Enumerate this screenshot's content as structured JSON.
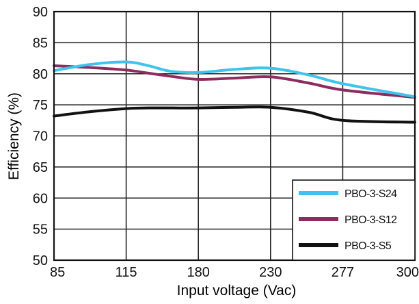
{
  "chart_data": {
    "type": "line",
    "title": "",
    "xlabel": "Input voltage (Vac)",
    "ylabel": "Efficiency (%)",
    "x_categories": [
      "85",
      "115",
      "180",
      "230",
      "277",
      "300"
    ],
    "y_ticks": [
      50,
      55,
      60,
      65,
      70,
      75,
      80,
      85,
      90
    ],
    "ylim": [
      50,
      90
    ],
    "grid": true,
    "legend_position": "bottom-right",
    "series": [
      {
        "name": "PBO-3-S24",
        "color": "#3fc3ec",
        "x": [
          85,
          100,
          115,
          135,
          155,
          180,
          205,
          230,
          255,
          277,
          300
        ],
        "y": [
          80.5,
          81.5,
          81.9,
          81.3,
          80.4,
          80.2,
          80.7,
          80.9,
          79.8,
          78.4,
          76.3
        ]
      },
      {
        "name": "PBO-3-S12",
        "color": "#8c2c5f",
        "x": [
          85,
          100,
          115,
          135,
          155,
          180,
          205,
          230,
          255,
          277,
          300
        ],
        "y": [
          81.3,
          81.0,
          80.6,
          80.1,
          79.6,
          79.1,
          79.3,
          79.5,
          78.5,
          77.4,
          76.2
        ]
      },
      {
        "name": "PBO-3-S5",
        "color": "#111111",
        "x": [
          85,
          100,
          115,
          135,
          155,
          180,
          205,
          230,
          255,
          277,
          300
        ],
        "y": [
          73.2,
          73.9,
          74.4,
          74.5,
          74.5,
          74.5,
          74.6,
          74.6,
          73.8,
          72.5,
          72.2
        ]
      }
    ]
  }
}
